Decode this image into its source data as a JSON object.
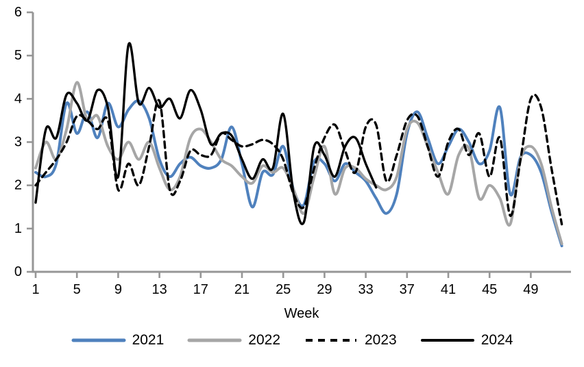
{
  "chart": {
    "background": "#ffffff",
    "axis_color": "#969696",
    "text_color": "#000000"
  },
  "chart_data": {
    "type": "line",
    "title": "",
    "xlabel": "Week",
    "ylabel": "",
    "x_start": 1,
    "x_step": 1,
    "x_axis_end": 53,
    "ylim": [
      0,
      6
    ],
    "y_ticks": [
      0,
      1,
      2,
      3,
      4,
      5,
      6
    ],
    "x_ticks": [
      1,
      5,
      9,
      13,
      17,
      21,
      25,
      29,
      33,
      37,
      41,
      45,
      49
    ],
    "grid": false,
    "smoothed": true,
    "legend_position": "bottom",
    "series": [
      {
        "name": "2021",
        "color": "#4F81BD",
        "dash": "solid",
        "width": 4,
        "values": [
          2.3,
          2.2,
          2.5,
          3.9,
          3.2,
          3.7,
          3.1,
          3.9,
          3.35,
          3.75,
          3.95,
          3.55,
          2.6,
          2.2,
          2.5,
          2.65,
          2.45,
          2.4,
          2.6,
          3.35,
          2.5,
          1.5,
          2.3,
          2.25,
          2.9,
          1.9,
          1.55,
          2.55,
          2.5,
          2.1,
          2.5,
          2.3,
          2.1,
          1.7,
          1.35,
          1.8,
          3.2,
          3.7,
          3.1,
          2.5,
          2.9,
          3.3,
          3.0,
          2.5,
          2.8,
          3.8,
          1.8,
          2.65,
          2.7,
          2.3,
          1.4,
          0.6
        ]
      },
      {
        "name": "2022",
        "color": "#A6A6A6",
        "dash": "solid",
        "width": 4,
        "values": [
          2.4,
          3.0,
          2.6,
          3.3,
          4.38,
          3.5,
          3.6,
          2.9,
          2.6,
          3.0,
          2.6,
          3.0,
          2.4,
          1.9,
          2.2,
          3.1,
          3.3,
          3.0,
          2.6,
          2.45,
          2.2,
          2.05,
          2.45,
          2.3,
          2.4,
          1.9,
          1.35,
          2.2,
          2.9,
          1.8,
          2.4,
          2.4,
          2.15,
          2.0,
          1.9,
          2.2,
          3.3,
          3.45,
          2.9,
          2.3,
          1.8,
          2.7,
          2.85,
          1.7,
          2.0,
          1.7,
          1.1,
          2.6,
          2.9,
          2.5,
          1.5,
          0.65
        ]
      },
      {
        "name": "2023",
        "color": "#000000",
        "dash": "dashed",
        "width": 3.4,
        "values": [
          2.0,
          2.3,
          2.6,
          3.0,
          3.6,
          3.5,
          3.3,
          3.5,
          1.9,
          2.5,
          2.0,
          2.9,
          3.95,
          1.9,
          2.1,
          2.8,
          2.7,
          2.7,
          3.2,
          3.05,
          2.9,
          2.95,
          3.05,
          2.95,
          2.6,
          1.8,
          1.5,
          2.4,
          3.1,
          3.4,
          2.8,
          2.3,
          3.35,
          3.4,
          2.1,
          2.7,
          3.5,
          3.6,
          2.9,
          2.2,
          3.0,
          3.3,
          2.7,
          3.2,
          2.2,
          3.1,
          1.3,
          2.6,
          4.0,
          3.8,
          2.4,
          1.1
        ]
      },
      {
        "name": "2024",
        "color": "#000000",
        "dash": "solid",
        "width": 3.4,
        "values": [
          1.6,
          3.3,
          3.1,
          4.1,
          3.9,
          3.5,
          4.2,
          3.8,
          2.2,
          5.25,
          3.9,
          4.25,
          3.8,
          4.0,
          3.55,
          4.2,
          3.75,
          2.95,
          3.2,
          3.15,
          2.6,
          2.15,
          2.6,
          2.4,
          3.65,
          1.8,
          1.15,
          2.9,
          2.7,
          2.2,
          2.9,
          3.1,
          2.5,
          1.95
        ]
      }
    ]
  }
}
